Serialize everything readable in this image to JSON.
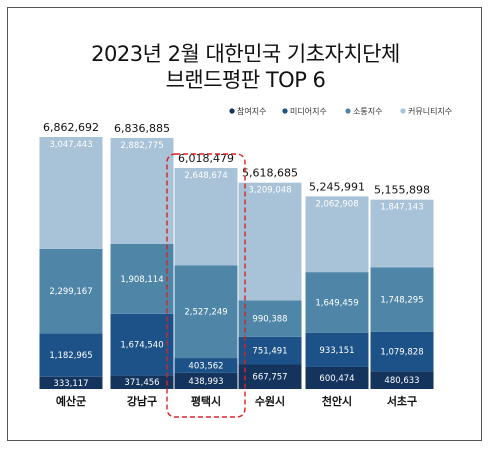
{
  "title_line1": "2023년 2월 대한민국 기초자치단체",
  "title_line2": "브랜드평판 TOP 6",
  "chart_data": {
    "type": "bar",
    "stacked": true,
    "categories": [
      "예산군",
      "강남구",
      "평택시",
      "수원시",
      "천안시",
      "서초구"
    ],
    "totals": [
      "6,862,692",
      "6,836,885",
      "6,018,479",
      "5,618,685",
      "5,245,991",
      "5,155,898"
    ],
    "total_values": [
      6862692,
      6836885,
      6018479,
      5618685,
      5245991,
      5155898
    ],
    "highlight_category": "평택시",
    "series": [
      {
        "name": "참여지수",
        "color": "#14345e",
        "values": [
          333117,
          371456,
          438993,
          667757,
          600474,
          480633
        ],
        "labels": [
          "333,117",
          "371,456",
          "438,993",
          "667,757",
          "600,474",
          "480,633"
        ]
      },
      {
        "name": "미디어지수",
        "color": "#1c5288",
        "values": [
          1182965,
          1674540,
          403562,
          751491,
          933151,
          1079828
        ],
        "labels": [
          "1,182,965",
          "1,674,540",
          "403,562",
          "751,491",
          "933,151",
          "1,079,828"
        ]
      },
      {
        "name": "소통지수",
        "color": "#4f86a8",
        "values": [
          2299167,
          1908114,
          2527249,
          990388,
          1649459,
          1748295
        ],
        "labels": [
          "2,299,167",
          "1,908,114",
          "2,527,249",
          "990,388",
          "1,649,459",
          "1,748,295"
        ]
      },
      {
        "name": "커뮤니티지수",
        "color": "#a8c2d8",
        "values": [
          3047443,
          2882775,
          2648674,
          3209048,
          2062908,
          1847143
        ],
        "labels": [
          "3,047,443",
          "2,882,775",
          "2,648,674",
          "3,209,048",
          "2,062,908",
          "1,847,143"
        ]
      }
    ],
    "legend_position": "top-right",
    "grid": false
  }
}
